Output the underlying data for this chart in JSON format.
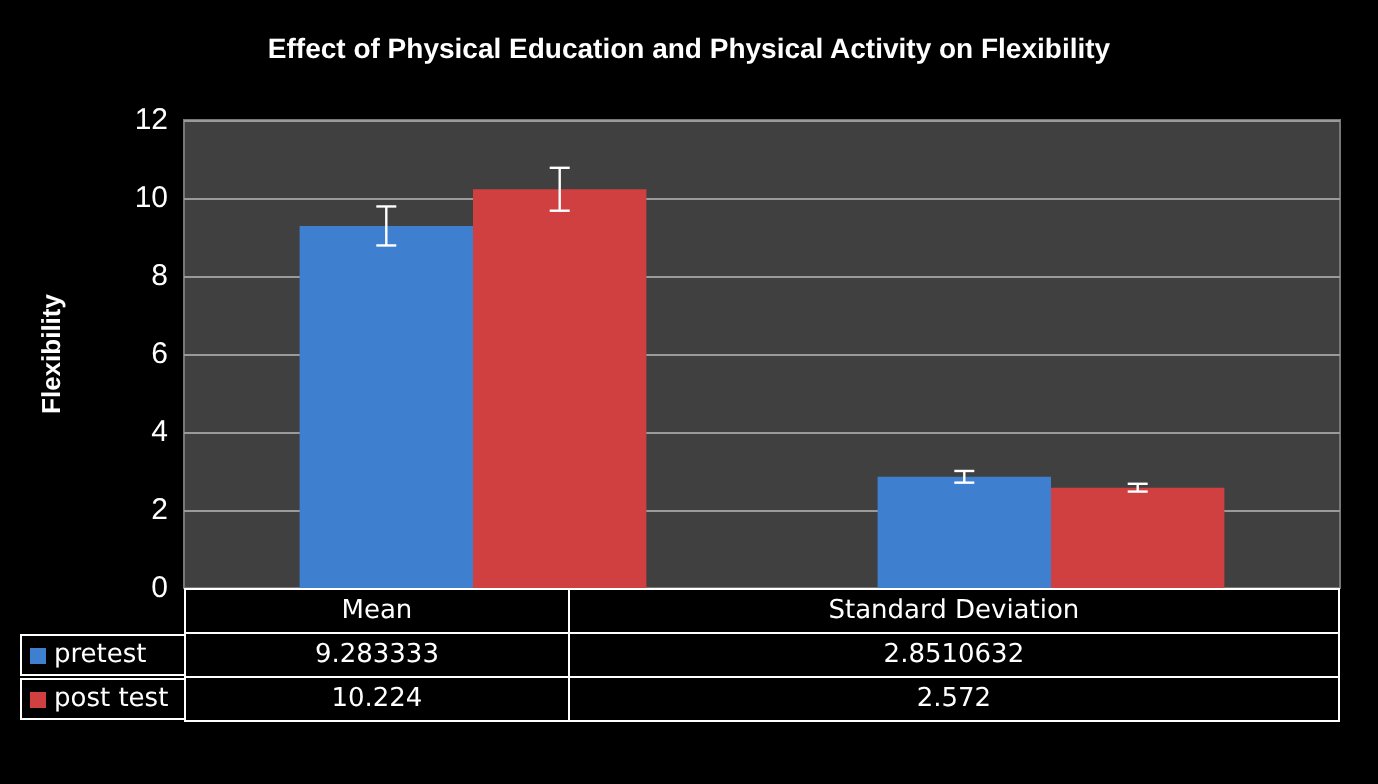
{
  "chart_data": {
    "type": "bar",
    "title": "Effect of Physical Education and Physical Activity on Flexibility",
    "ylabel": "Flexibility",
    "categories": [
      "Mean",
      "Standard Deviation"
    ],
    "series": [
      {
        "name": "pretest",
        "color": "#3f7fd0",
        "values": [
          9.283333,
          2.8510632
        ],
        "errors": [
          0.5,
          0.15
        ]
      },
      {
        "name": "post test",
        "color": "#d04040",
        "values": [
          10.224,
          2.572
        ],
        "errors": [
          0.55,
          0.1
        ]
      }
    ],
    "ylim": [
      0,
      12
    ],
    "yticks": [
      0,
      2,
      4,
      6,
      8,
      10,
      12
    ],
    "grid": "y",
    "data_labels": true,
    "legend": "bottom"
  }
}
